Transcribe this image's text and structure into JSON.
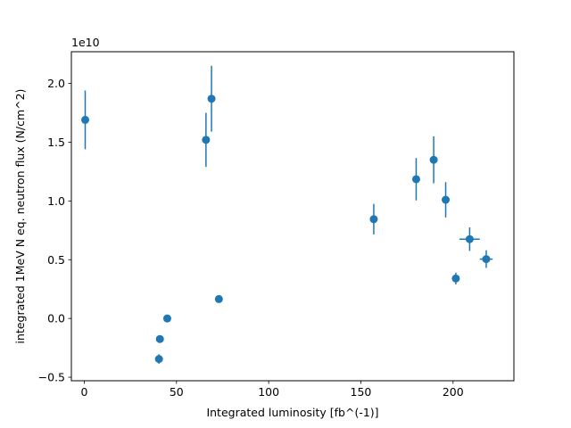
{
  "chart_data": {
    "type": "scatter",
    "title": "",
    "xlabel": "Integrated luminosity [fb^(-1)]",
    "ylabel": "integrated 1MeV N eq. neutron flux (N/cm^2)",
    "y_offset_text": "1e10",
    "xlim": [
      -7,
      233
    ],
    "ylim": [
      -0.53,
      2.27
    ],
    "y_scale_factor": 10000000000.0,
    "x_ticks": [
      0,
      50,
      100,
      150,
      200
    ],
    "x_tick_labels": [
      "0",
      "50",
      "100",
      "150",
      "200"
    ],
    "y_ticks": [
      -0.5,
      0.0,
      0.5,
      1.0,
      1.5,
      2.0
    ],
    "y_tick_labels": [
      "−0.5",
      "0.0",
      "0.5",
      "1.0",
      "1.5",
      "2.0"
    ],
    "grid": false,
    "legend": false,
    "marker_color": "#1f77b4",
    "series": [
      {
        "points": [
          {
            "x": 0.5,
            "y": 1.69,
            "xerr": 0,
            "yerr": 0.25
          },
          {
            "x": 40.5,
            "y": -0.345,
            "xerr": 0,
            "yerr": 0.04
          },
          {
            "x": 41,
            "y": -0.175,
            "xerr": 0,
            "yerr": 0.01
          },
          {
            "x": 45,
            "y": 0.0,
            "xerr": 0,
            "yerr": 0.01
          },
          {
            "x": 66,
            "y": 1.52,
            "xerr": 0,
            "yerr": 0.23
          },
          {
            "x": 69,
            "y": 1.87,
            "xerr": 0,
            "yerr": 0.28
          },
          {
            "x": 73,
            "y": 0.165,
            "xerr": 0,
            "yerr": 0.01
          },
          {
            "x": 157,
            "y": 0.845,
            "xerr": 0,
            "yerr": 0.13
          },
          {
            "x": 180,
            "y": 1.185,
            "xerr": 0,
            "yerr": 0.18
          },
          {
            "x": 189.5,
            "y": 1.35,
            "xerr": 0,
            "yerr": 0.2
          },
          {
            "x": 196,
            "y": 1.01,
            "xerr": 0,
            "yerr": 0.15
          },
          {
            "x": 201.5,
            "y": 0.34,
            "xerr": 0,
            "yerr": 0.05
          },
          {
            "x": 209,
            "y": 0.675,
            "xerr": 5.5,
            "yerr": 0.1
          },
          {
            "x": 218,
            "y": 0.505,
            "xerr": 3.5,
            "yerr": 0.075
          }
        ]
      }
    ]
  }
}
